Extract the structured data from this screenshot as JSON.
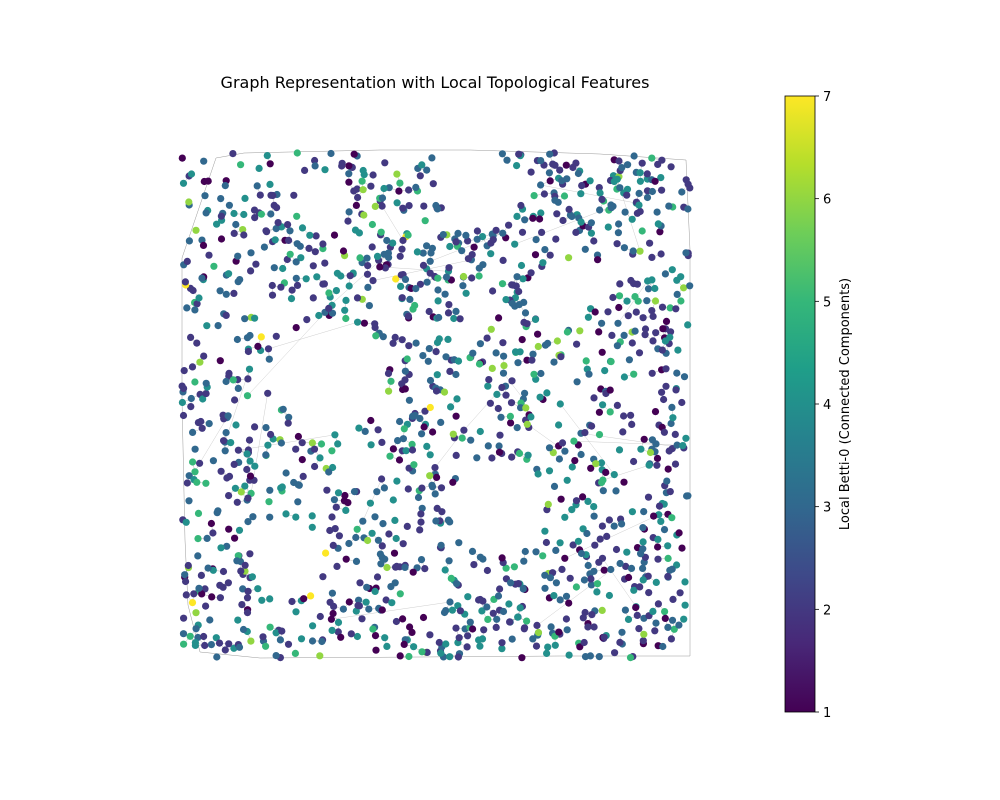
{
  "chart_data": {
    "type": "scatter",
    "title": "Graph Representation with Local Topological Features",
    "xlabel": "",
    "ylabel": "",
    "axes_visible": false,
    "grid": false,
    "edge_color": "#7f7f7f",
    "colormap": "viridis",
    "colormap_stops": [
      "#440154",
      "#482878",
      "#3e4989",
      "#31688e",
      "#26828e",
      "#1f9e89",
      "#35b779",
      "#6ece58",
      "#b5de2b",
      "#fde725"
    ],
    "colorbar": {
      "label": "Local Betti-0 (Connected Components)",
      "range": [
        1,
        7
      ],
      "ticks": [
        1,
        2,
        3,
        4,
        5,
        6,
        7
      ],
      "placement": "right"
    },
    "nodes": {
      "description_of_distribution": "dense random geometric graph filling a square region with several empty holes",
      "value_range": [
        1,
        7
      ],
      "dominant_values": [
        2,
        3,
        4
      ]
    }
  }
}
